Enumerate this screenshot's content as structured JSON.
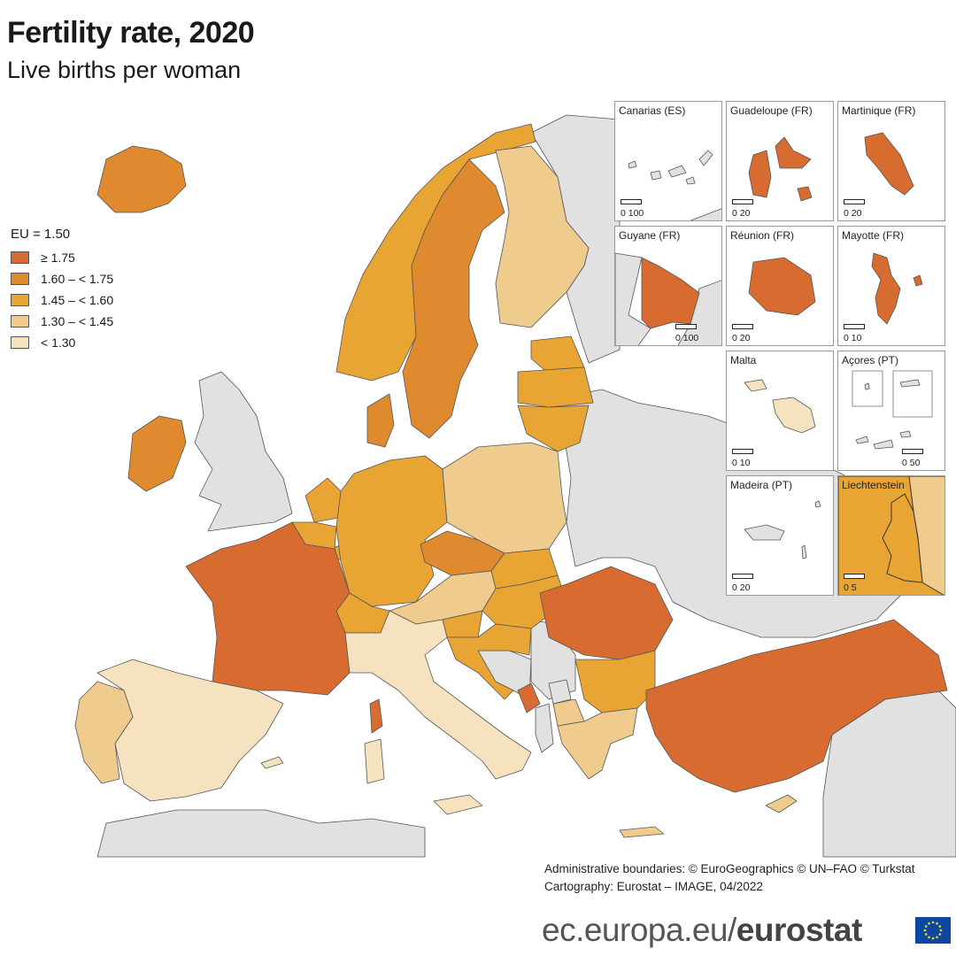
{
  "header": {
    "title": "Fertility rate, 2020",
    "subtitle": "Live births per woman"
  },
  "legend": {
    "eu_value": "EU = 1.50",
    "classes": [
      {
        "label": "≥ 1.75",
        "color": "#d86b2f"
      },
      {
        "label": "1.60 – < 1.75",
        "color": "#df8a2e"
      },
      {
        "label": "1.45 – < 1.60",
        "color": "#e9a534"
      },
      {
        "label": "1.30 – < 1.45",
        "color": "#efcb8e"
      },
      {
        "label": "< 1.30",
        "color": "#f7e2c0"
      }
    ],
    "no_data_color": "#e1e1e1"
  },
  "insets": [
    {
      "label": "Canarias (ES)",
      "scale": "0    100",
      "class": -1
    },
    {
      "label": "Guadeloupe (FR)",
      "scale": "0    20",
      "class": 0
    },
    {
      "label": "Martinique (FR)",
      "scale": "0    20",
      "class": 0
    },
    {
      "label": "Guyane (FR)",
      "scale": "0    100",
      "class": 0
    },
    {
      "label": "Réunion (FR)",
      "scale": "0    20",
      "class": 0
    },
    {
      "label": "Mayotte (FR)",
      "scale": "0    10",
      "class": 0
    },
    {
      "label": "Malta",
      "scale": "0    10",
      "class": 4
    },
    {
      "label": "Açores (PT)",
      "scale": "0    50",
      "class": -1
    },
    {
      "label": "Madeira (PT)",
      "scale": "0    20",
      "class": -1
    },
    {
      "label": "Liechtenstein",
      "scale": "0    5",
      "class": 2
    }
  ],
  "credits": {
    "line1": "Administrative boundaries: © EuroGeographics © UN–FAO © Turkstat",
    "line2": "Cartography: Eurostat – IMAGE, 04/2022"
  },
  "footer": {
    "domain": "ec.europa.eu/",
    "brand": "eurostat"
  },
  "flag": {
    "blue": "#0e47a1",
    "stars": "#ffd617"
  }
}
